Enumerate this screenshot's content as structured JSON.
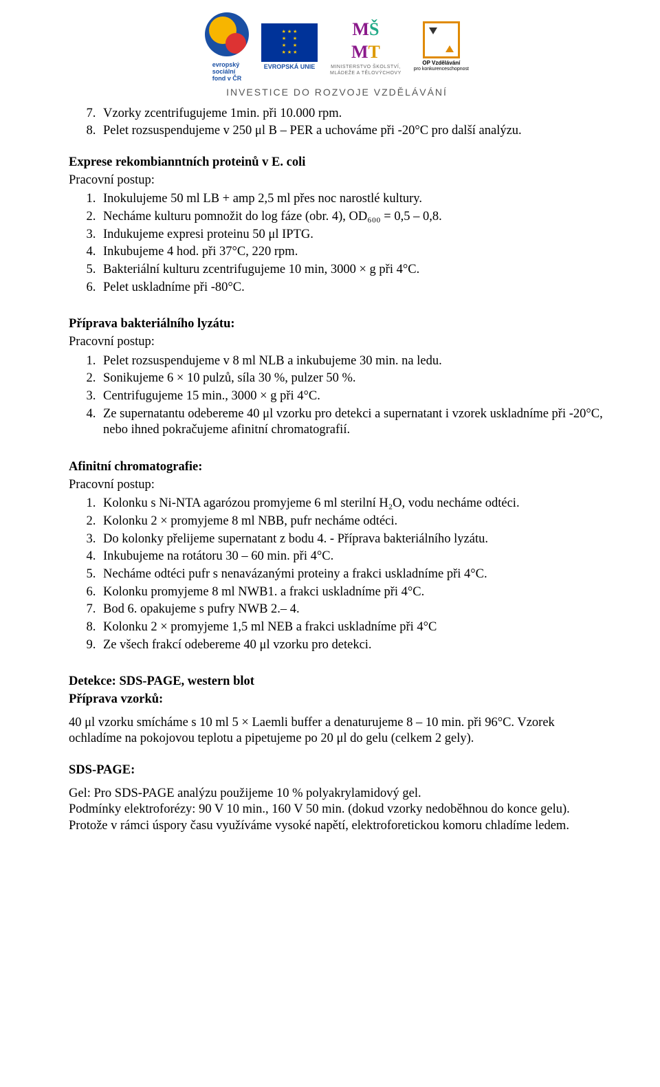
{
  "header": {
    "caption": "INVESTICE DO ROZVOJE VZDĚLÁVÁNÍ",
    "esf_lines": "evropský\nsociální\nfond v ČR",
    "eu_label": "EVROPSKÁ UNIE",
    "msmt_sub": "MINISTERSTVO ŠKOLSTVÍ,\nMLÁDEŽE A TĚLOVÝCHOVY",
    "op_line1": "OP Vzdělávání",
    "op_line2": "pro konkurenceschopnost"
  },
  "top_list_start": 7,
  "top_list": [
    "Vzorky zcentrifugujeme 1min. při 10.000 rpm.",
    "Pelet rozsuspendujeme v 250 μl B – PER a uchováme při -20°C pro další analýzu."
  ],
  "exprese": {
    "title": "Exprese rekombianntních proteinů v E. coli",
    "sub": "Pracovní postup:",
    "items": [
      "Inokulujeme 50 ml LB + amp 2,5 ml přes noc narostlé kultury.",
      "Necháme kulturu pomnožit do log fáze (obr. 4), OD₆₀₀ = 0,5 – 0,8.",
      "Indukujeme expresi proteinu 50 μl IPTG.",
      "Inkubujeme 4 hod. při 37°C, 220 rpm.",
      "Bakteriální kulturu zcentrifugujeme 10 min, 3000 × g při 4°C.",
      "Pelet uskladníme při -80°C."
    ]
  },
  "lyzat": {
    "title": "Příprava bakteriálního lyzátu:",
    "sub": "Pracovní postup:",
    "items": [
      "Pelet rozsuspendujeme v 8 ml NLB a inkubujeme 30 min. na ledu.",
      "Sonikujeme 6 × 10 pulzů, síla 30 %, pulzer 50 %.",
      "Centrifugujeme 15 min., 3000 × g při 4°C.",
      "Ze supernatantu odebereme 40 μl vzorku pro detekci a supernatant i vzorek uskladníme při -20°C, nebo ihned pokračujeme afinitní chromatografií."
    ]
  },
  "afin": {
    "title": "Afinitní chromatografie:",
    "sub": "Pracovní postup:",
    "items": [
      "Kolonku s Ni-NTA agarózou promyjeme 6 ml sterilní H₂O, vodu necháme odtéci.",
      "Kolonku 2 × promyjeme 8 ml NBB, pufr necháme odtéci.",
      "Do kolonky přelijeme supernatant z bodu 4. - Příprava bakteriálního lyzátu.",
      "Inkubujeme na rotátoru 30 – 60 min. při 4°C.",
      "Necháme odtéci pufr s nenavázanými proteiny a frakci uskladníme při 4°C.",
      "Kolonku promyjeme 8 ml NWB1. a frakci uskladníme při 4°C.",
      "Bod 6. opakujeme s pufry NWB 2.– 4.",
      "Kolonku 2 × promyjeme 1,5 ml NEB a frakci uskladníme při 4°C",
      "Ze všech frakcí odebereme 40 μl vzorku pro detekci."
    ]
  },
  "detekce": {
    "title": "Detekce: SDS-PAGE, western blot",
    "sub": "Příprava vzorků:",
    "para": "40 μl vzorku smícháme s 10 ml 5 × Laemli buffer a denaturujeme 8 – 10 min. při 96°C. Vzorek ochladíme na pokojovou teplotu a pipetujeme po 20 μl do gelu (celkem 2 gely)."
  },
  "sds": {
    "title": "SDS-PAGE:",
    "para": "Gel: Pro SDS-PAGE analýzu použijeme 10 % polyakrylamidový gel.\nPodmínky elektroforézy: 90 V 10 min., 160 V 50 min. (dokud vzorky nedoběhnou do konce gelu). Protože v rámci úspory času využíváme vysoké napětí, elektroforetickou komoru chladíme ledem."
  },
  "colors": {
    "text": "#000000",
    "bg": "#ffffff"
  },
  "typography": {
    "body_font": "Times New Roman",
    "body_size_pt": 14,
    "header_font": "Arial"
  }
}
